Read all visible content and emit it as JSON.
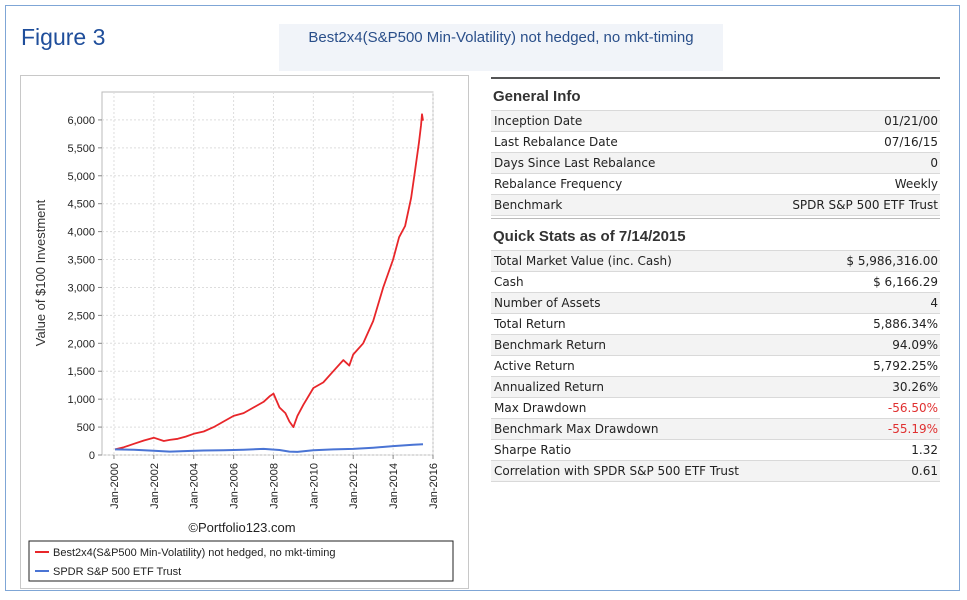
{
  "figure_label": "Figure 3",
  "figure_title": "Best2x4(S&P500 Min-Volatility) not hedged, no mkt-timing",
  "general_info": {
    "heading": "General Info",
    "rows": [
      {
        "label": "Inception Date",
        "value": "01/21/00"
      },
      {
        "label": "Last Rebalance Date",
        "value": "07/16/15"
      },
      {
        "label": "Days Since Last Rebalance",
        "value": "0"
      },
      {
        "label": "Rebalance Frequency",
        "value": "Weekly"
      },
      {
        "label": "Benchmark",
        "value": "SPDR S&P 500 ETF Trust"
      }
    ]
  },
  "quick_stats": {
    "heading": "Quick Stats as of 7/14/2015",
    "rows": [
      {
        "label": "Total Market Value (inc. Cash)",
        "value": "$ 5,986,316.00"
      },
      {
        "label": "Cash",
        "value": "$ 6,166.29"
      },
      {
        "label": "Number of Assets",
        "value": "4"
      },
      {
        "label": "Total Return",
        "value": "5,886.34%"
      },
      {
        "label": "Benchmark Return",
        "value": "94.09%"
      },
      {
        "label": "Active Return",
        "value": "5,792.25%"
      },
      {
        "label": "Annualized Return",
        "value": "30.26%"
      },
      {
        "label": "Max Drawdown",
        "value": "-56.50%",
        "negative": true
      },
      {
        "label": "Benchmark Max Drawdown",
        "value": "-55.19%",
        "negative": true
      },
      {
        "label": "Sharpe Ratio",
        "value": "1.32"
      },
      {
        "label": "Correlation with SPDR S&P 500 ETF Trust",
        "value": "0.61"
      }
    ]
  },
  "chart_data": {
    "type": "line",
    "ylabel": "Value of $100 Investment",
    "xlabel": "",
    "ylim": [
      0,
      6500
    ],
    "xlim": [
      1999.4,
      2016.0
    ],
    "yticks": [
      0,
      500,
      1000,
      1500,
      2000,
      2500,
      3000,
      3500,
      4000,
      4500,
      5000,
      5500,
      6000
    ],
    "ytick_labels": [
      "0",
      "500",
      "1,000",
      "1,500",
      "2,000",
      "2,500",
      "3,000",
      "3,500",
      "4,000",
      "4,500",
      "5,000",
      "5,500",
      "6,000"
    ],
    "xticks": [
      2000,
      2002,
      2004,
      2006,
      2008,
      2010,
      2012,
      2014,
      2016
    ],
    "xtick_labels": [
      "Jan-2000",
      "Jan-2002",
      "Jan-2004",
      "Jan-2006",
      "Jan-2008",
      "Jan-2010",
      "Jan-2012",
      "Jan-2014",
      "Jan-2016"
    ],
    "grid": true,
    "legend_position": "bottom",
    "credit": "©Portfolio123.com",
    "series": [
      {
        "name": "Best2x4(S&P500 Min-Volatility) not hedged, no mkt-timing",
        "color": "#e8262a",
        "x": [
          2000.05,
          2000.5,
          2001.0,
          2001.5,
          2002.0,
          2002.5,
          2002.8,
          2003.2,
          2003.6,
          2004.0,
          2004.5,
          2005.0,
          2005.5,
          2006.0,
          2006.5,
          2007.0,
          2007.5,
          2007.8,
          2008.0,
          2008.3,
          2008.6,
          2008.8,
          2009.0,
          2009.2,
          2009.5,
          2010.0,
          2010.5,
          2011.0,
          2011.5,
          2011.8,
          2012.0,
          2012.5,
          2013.0,
          2013.5,
          2014.0,
          2014.3,
          2014.6,
          2014.9,
          2015.1,
          2015.3,
          2015.4,
          2015.45,
          2015.5
        ],
        "y": [
          100,
          140,
          200,
          260,
          310,
          250,
          270,
          290,
          330,
          380,
          420,
          500,
          600,
          700,
          750,
          850,
          950,
          1050,
          1100,
          850,
          750,
          600,
          500,
          700,
          900,
          1200,
          1300,
          1500,
          1700,
          1600,
          1800,
          2000,
          2400,
          3000,
          3500,
          3900,
          4100,
          4600,
          5100,
          5600,
          5900,
          6100,
          5986
        ]
      },
      {
        "name": "SPDR S&P 500 ETF Trust",
        "color": "#4a74d4",
        "x": [
          2000.05,
          2001.0,
          2002.0,
          2002.8,
          2003.5,
          2004.5,
          2005.5,
          2006.5,
          2007.5,
          2008.3,
          2008.8,
          2009.2,
          2010.0,
          2011.0,
          2012.0,
          2013.0,
          2014.0,
          2015.0,
          2015.5
        ],
        "y": [
          100,
          95,
          75,
          60,
          70,
          80,
          85,
          95,
          110,
          90,
          60,
          55,
          85,
          100,
          110,
          130,
          160,
          185,
          194
        ]
      }
    ]
  }
}
